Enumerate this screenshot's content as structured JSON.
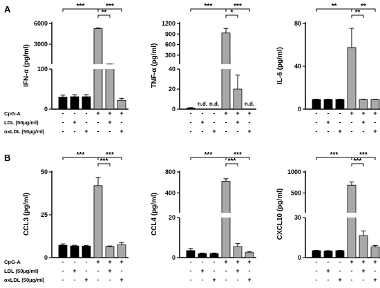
{
  "panel_labels": [
    "A",
    "B"
  ],
  "conditions": {
    "labels": [
      "CpG-A",
      "LDL (50µg/ml)",
      "oxLDL (50µg/ml)"
    ],
    "signs": [
      [
        "-",
        "-",
        "-",
        "+",
        "+",
        "+"
      ],
      [
        "-",
        "+",
        "-",
        "-",
        "+",
        "-"
      ],
      [
        "-",
        "-",
        "+",
        "-",
        "-",
        "+"
      ]
    ]
  },
  "colors": {
    "control_bar": "#000000",
    "stim_bar": "#a8a8a8"
  },
  "chart_data": [
    {
      "id": "ifna",
      "type": "bar",
      "row": 0,
      "col": 0,
      "ylabel": "IFN-α (pg/ml)",
      "categories": [
        "1",
        "2",
        "3",
        "4",
        "5",
        "6"
      ],
      "values": [
        30,
        31,
        31,
        5250,
        110,
        22
      ],
      "errors": [
        5,
        5,
        5,
        110,
        28,
        5
      ],
      "ylim": [
        0,
        6000
      ],
      "broken_axis": {
        "lower": [
          0,
          100
        ],
        "upper": [
          100,
          6000
        ]
      },
      "ticks": [
        {
          "v": 0,
          "label": "0"
        },
        {
          "v": 100,
          "label": "100"
        },
        {
          "v": 3000,
          "label": "3000"
        },
        {
          "v": 6000,
          "label": "6000"
        }
      ],
      "nd_labels": [
        "",
        "",
        "",
        "",
        "",
        ""
      ],
      "significance": [
        {
          "from": 0,
          "to": 3,
          "label": "***",
          "level": 2
        },
        {
          "from": 3,
          "to": 5,
          "label": "***",
          "level": 2
        },
        {
          "from": 3,
          "to": 4,
          "label": "**",
          "level": 1
        }
      ]
    },
    {
      "id": "tnfa",
      "type": "bar",
      "row": 0,
      "col": 1,
      "ylabel": "TNF-α (pg/ml)",
      "categories": [
        "1",
        "2",
        "3",
        "4",
        "5",
        "6"
      ],
      "values": [
        1,
        0,
        0,
        930,
        20,
        0
      ],
      "errors": [
        0.5,
        0,
        0,
        130,
        14,
        0
      ],
      "ylim": [
        0,
        1200
      ],
      "broken_axis": {
        "lower": [
          0,
          40
        ],
        "upper": [
          40,
          1200
        ]
      },
      "ticks": [
        {
          "v": 0,
          "label": "0"
        },
        {
          "v": 20,
          "label": "20"
        },
        {
          "v": 40,
          "label": "40"
        },
        {
          "v": 300,
          "label": "300"
        },
        {
          "v": 600,
          "label": "600"
        },
        {
          "v": 900,
          "label": "900"
        },
        {
          "v": 1200,
          "label": "1200"
        }
      ],
      "nd_labels": [
        "",
        "n.d.",
        "n.d.",
        "",
        "",
        "n.d."
      ],
      "significance": [
        {
          "from": 0,
          "to": 3,
          "label": "***",
          "level": 2
        },
        {
          "from": 3,
          "to": 5,
          "label": "***",
          "level": 2
        },
        {
          "from": 3,
          "to": 4,
          "label": "*",
          "level": 1
        }
      ]
    },
    {
      "id": "il6",
      "type": "bar",
      "row": 0,
      "col": 2,
      "ylabel": "IL-6 (pg/ml)",
      "categories": [
        "1",
        "2",
        "3",
        "4",
        "5",
        "6"
      ],
      "values": [
        9,
        9,
        9,
        57.5,
        9,
        9
      ],
      "errors": [
        0.3,
        0.3,
        0.3,
        18,
        0.3,
        0.3
      ],
      "ylim": [
        0,
        80
      ],
      "broken_axis": null,
      "ticks": [
        {
          "v": 0,
          "label": "0"
        },
        {
          "v": 40,
          "label": "40"
        },
        {
          "v": 80,
          "label": "80"
        }
      ],
      "nd_labels": [
        "",
        "",
        "",
        "",
        "",
        ""
      ],
      "significance": [
        {
          "from": 0,
          "to": 3,
          "label": "**",
          "level": 2
        },
        {
          "from": 3,
          "to": 5,
          "label": "**",
          "level": 2
        },
        {
          "from": 3,
          "to": 4,
          "label": "**",
          "level": 1
        }
      ]
    },
    {
      "id": "ccl3",
      "type": "bar",
      "row": 1,
      "col": 0,
      "ylabel": "CCL3 (pg/ml)",
      "categories": [
        "1",
        "2",
        "3",
        "4",
        "5",
        "6"
      ],
      "values": [
        7.2,
        6.8,
        6.7,
        42,
        6.5,
        7.5
      ],
      "errors": [
        0.8,
        0.4,
        0.4,
        4.8,
        0.3,
        1.3
      ],
      "ylim": [
        0,
        50
      ],
      "broken_axis": null,
      "ticks": [
        {
          "v": 0,
          "label": "0"
        },
        {
          "v": 25,
          "label": "25"
        },
        {
          "v": 50,
          "label": "50"
        }
      ],
      "nd_labels": [
        "",
        "",
        "",
        "",
        "",
        ""
      ],
      "significance": [
        {
          "from": 0,
          "to": 3,
          "label": "***",
          "level": 2
        },
        {
          "from": 3,
          "to": 5,
          "label": "***",
          "level": 2
        },
        {
          "from": 3,
          "to": 4,
          "label": "***",
          "level": 1
        }
      ]
    },
    {
      "id": "ccl4",
      "type": "bar",
      "row": 1,
      "col": 1,
      "ylabel": "CCL4 (pg/ml)",
      "categories": [
        "1",
        "2",
        "3",
        "4",
        "5",
        "6"
      ],
      "values": [
        3.5,
        2,
        2,
        620,
        5.5,
        2.5
      ],
      "errors": [
        1,
        0.3,
        0.3,
        50,
        1.5,
        0.5
      ],
      "ylim": [
        0,
        800
      ],
      "broken_axis": {
        "lower": [
          0,
          20
        ],
        "upper": [
          20,
          800
        ]
      },
      "ticks": [
        {
          "v": 0,
          "label": "0"
        },
        {
          "v": 20,
          "label": "20"
        },
        {
          "v": 400,
          "label": "400"
        },
        {
          "v": 800,
          "label": "800"
        }
      ],
      "nd_labels": [
        "",
        "",
        "",
        "",
        "",
        ""
      ],
      "significance": [
        {
          "from": 0,
          "to": 3,
          "label": "***",
          "level": 2
        },
        {
          "from": 3,
          "to": 5,
          "label": "***",
          "level": 2
        },
        {
          "from": 3,
          "to": 4,
          "label": "***",
          "level": 1
        }
      ]
    },
    {
      "id": "cxcl10",
      "type": "bar",
      "row": 1,
      "col": 2,
      "ylabel": "CXCL10 (pg/ml)",
      "categories": [
        "1",
        "2",
        "3",
        "4",
        "5",
        "6"
      ],
      "values": [
        5.2,
        5,
        5.2,
        685,
        16.5,
        8
      ],
      "errors": [
        0.2,
        0.2,
        0.2,
        80,
        3.5,
        1
      ],
      "ylim": [
        0,
        1000
      ],
      "broken_axis": {
        "lower": [
          0,
          30
        ],
        "upper": [
          30,
          1000
        ]
      },
      "ticks": [
        {
          "v": 0,
          "label": "0"
        },
        {
          "v": 30,
          "label": "30"
        },
        {
          "v": 500,
          "label": "500"
        },
        {
          "v": 1000,
          "label": "1000"
        }
      ],
      "nd_labels": [
        "",
        "",
        "",
        "",
        "",
        ""
      ],
      "significance": [
        {
          "from": 0,
          "to": 3,
          "label": "***",
          "level": 2
        },
        {
          "from": 3,
          "to": 5,
          "label": "***",
          "level": 2
        },
        {
          "from": 3,
          "to": 4,
          "label": "***",
          "level": 1
        }
      ]
    }
  ]
}
